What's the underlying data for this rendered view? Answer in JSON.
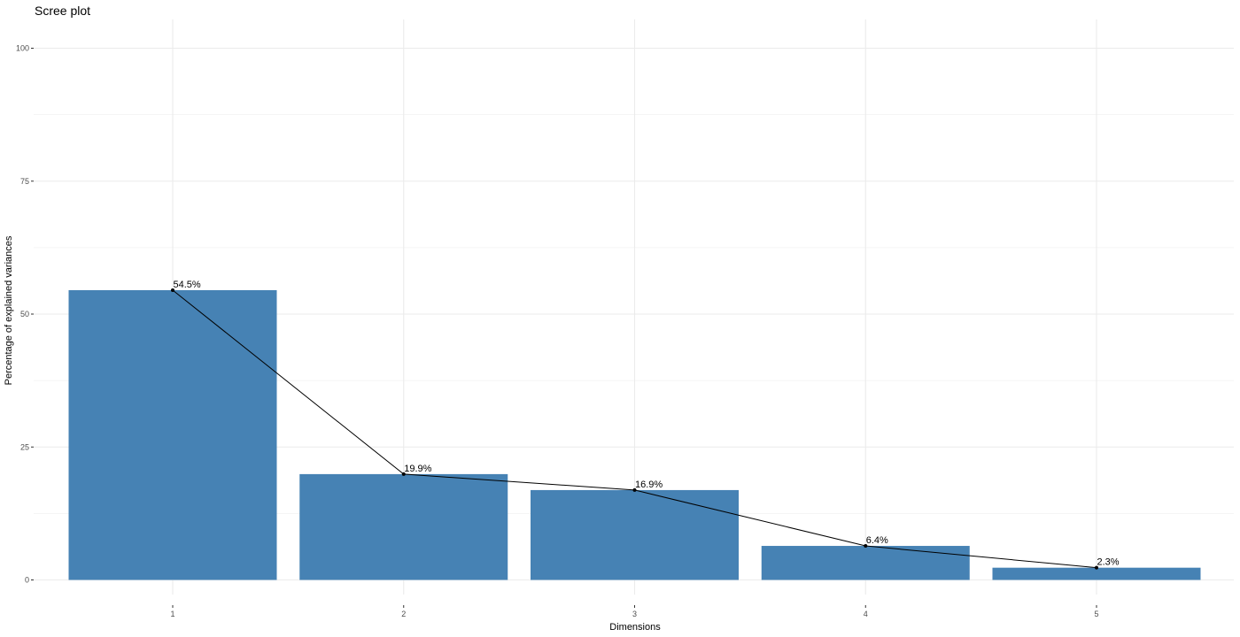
{
  "chart_data": {
    "type": "bar",
    "title": "Scree plot",
    "xlabel": "Dimensions",
    "ylabel": "Percentage of explained variances",
    "categories": [
      "1",
      "2",
      "3",
      "4",
      "5"
    ],
    "values": [
      54.5,
      19.9,
      16.9,
      6.4,
      2.3
    ],
    "labels": [
      "54.5%",
      "19.9%",
      "16.9%",
      "6.4%",
      "2.3%"
    ],
    "ylim": [
      0,
      100
    ],
    "yticks": [
      0,
      25,
      50,
      75,
      100
    ],
    "grid": true,
    "bar_color": "#4682B4",
    "line_color": "#000000",
    "overlay": "line with points connecting bar tops"
  }
}
